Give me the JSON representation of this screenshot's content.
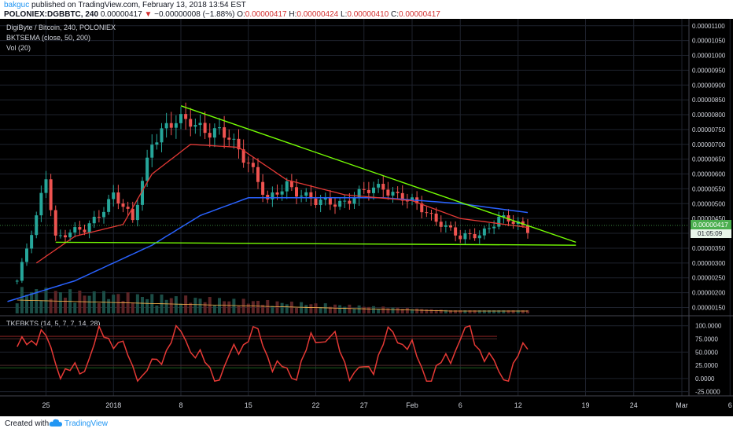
{
  "header": {
    "author": "bakguc",
    "published_text": "published on TradingView.com, February 13, 2018 13:54 EST",
    "symbol": "POLONIEX:DGBBTC, 240",
    "last_price": "0.00000417",
    "change_arrow": "▼",
    "change": "−0.00000008 (−1.88%)",
    "o_label": "O:",
    "o_value": "0.00000417",
    "h_label": "H:",
    "h_value": "0.00000424",
    "l_label": "L:",
    "l_value": "0.00000410",
    "c_label": "C:",
    "c_value": "0.00000417"
  },
  "legend": {
    "title": "DigiByte / Bitcoin, 240, POLONIEX",
    "ema": "BKTSEMA (close, 50, 200)",
    "vol": "Vol (20)",
    "osc": "TKEBKTS (14, 5, 7, 7, 14, 28)"
  },
  "price_axis": {
    "labels": [
      "0.00001100",
      "0.00001050",
      "0.00001000",
      "0.00000950",
      "0.00000900",
      "0.00000850",
      "0.00000800",
      "0.00000750",
      "0.00000700",
      "0.00000650",
      "0.00000600",
      "0.00000550",
      "0.00000500",
      "0.00000450",
      "0.00000400",
      "0.00000350",
      "0.00000300",
      "0.00000250",
      "0.00000200",
      "0.00000150"
    ],
    "current_price": "0.00000417",
    "countdown": "01:05:09"
  },
  "osc_axis": {
    "labels": [
      "100.0000",
      "75.0000",
      "50.0000",
      "25.0000",
      "0.0000",
      "-25.0000"
    ]
  },
  "time_axis": {
    "labels": [
      "25",
      "2018",
      "8",
      "15",
      "22",
      "27",
      "Feb",
      "6",
      "12",
      "19",
      "24",
      "Mar",
      "6"
    ]
  },
  "footer": {
    "created_with": "Created with",
    "brand": "TradingView"
  },
  "colors": {
    "background": "#000000",
    "candle_up": "#26a69a",
    "candle_down": "#ef5350",
    "ema50": "#e53935",
    "ema200": "#2962ff",
    "trendline": "#76ff03",
    "oscillator": "#e53935",
    "price_tag": "#4caf50"
  },
  "chart_data": {
    "type": "candlestick",
    "title": "DigiByte / Bitcoin, 240, POLONIEX",
    "ylim": [
      1.3e-06,
      1.11e-05
    ],
    "x_ticks": [
      "25",
      "2018",
      "8",
      "15",
      "22",
      "27",
      "Feb",
      "6",
      "12",
      "19",
      "24",
      "Mar",
      "6"
    ],
    "close_approx": [
      {
        "x": "Dec 22",
        "y": 2.4e-06
      },
      {
        "x": "Dec 24",
        "y": 4.5e-06
      },
      {
        "x": "Dec 25",
        "y": 6e-06
      },
      {
        "x": "Dec 26",
        "y": 3.9e-06
      },
      {
        "x": "Dec 29",
        "y": 4.1e-06
      },
      {
        "x": "Jan 1",
        "y": 5.3e-06
      },
      {
        "x": "Jan 3",
        "y": 4.4e-06
      },
      {
        "x": "Jan 5",
        "y": 7.2e-06
      },
      {
        "x": "Jan 7",
        "y": 7.6e-06
      },
      {
        "x": "Jan 9",
        "y": 7.9e-06
      },
      {
        "x": "Jan 11",
        "y": 7.4e-06
      },
      {
        "x": "Jan 13",
        "y": 7.2e-06
      },
      {
        "x": "Jan 15",
        "y": 6.5e-06
      },
      {
        "x": "Jan 17",
        "y": 5e-06
      },
      {
        "x": "Jan 19",
        "y": 5.7e-06
      },
      {
        "x": "Jan 22",
        "y": 5e-06
      },
      {
        "x": "Jan 25",
        "y": 5.1e-06
      },
      {
        "x": "Jan 29",
        "y": 5.6e-06
      },
      {
        "x": "Feb 1",
        "y": 5e-06
      },
      {
        "x": "Feb 4",
        "y": 4.4e-06
      },
      {
        "x": "Feb 6",
        "y": 3.8e-06
      },
      {
        "x": "Feb 8",
        "y": 4e-06
      },
      {
        "x": "Feb 10",
        "y": 4.5e-06
      },
      {
        "x": "Feb 13",
        "y": 4.17e-06
      }
    ],
    "ema50_approx": [
      {
        "x": "Dec 24",
        "y": 3e-06
      },
      {
        "x": "Dec 28",
        "y": 3.9e-06
      },
      {
        "x": "Jan 2",
        "y": 4.3e-06
      },
      {
        "x": "Jan 5",
        "y": 6e-06
      },
      {
        "x": "Jan 9",
        "y": 7e-06
      },
      {
        "x": "Jan 14",
        "y": 6.9e-06
      },
      {
        "x": "Jan 19",
        "y": 5.8e-06
      },
      {
        "x": "Jan 25",
        "y": 5.3e-06
      },
      {
        "x": "Feb 1",
        "y": 5.1e-06
      },
      {
        "x": "Feb 6",
        "y": 4.5e-06
      },
      {
        "x": "Feb 13",
        "y": 4.2e-06
      }
    ],
    "ema200_approx": [
      {
        "x": "Dec 21",
        "y": 1.7e-06
      },
      {
        "x": "Dec 28",
        "y": 2.4e-06
      },
      {
        "x": "Jan 5",
        "y": 3.6e-06
      },
      {
        "x": "Jan 10",
        "y": 4.6e-06
      },
      {
        "x": "Jan 15",
        "y": 5.2e-06
      },
      {
        "x": "Jan 22",
        "y": 5.2e-06
      },
      {
        "x": "Jan 29",
        "y": 5.2e-06
      },
      {
        "x": "Feb 6",
        "y": 5e-06
      },
      {
        "x": "Feb 13",
        "y": 4.7e-06
      }
    ],
    "trendlines": [
      {
        "name": "descending resistance",
        "from": {
          "x": "Jan 8",
          "y": 8.3e-06
        },
        "to": {
          "x": "Feb 18",
          "y": 3.7e-06
        }
      },
      {
        "name": "horizontal support",
        "from": {
          "x": "Dec 26",
          "y": 3.7e-06
        },
        "to": {
          "x": "Feb 18",
          "y": 3.6e-06
        }
      }
    ]
  }
}
